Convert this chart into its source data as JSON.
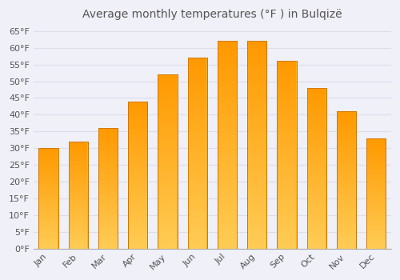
{
  "title": "Average monthly temperatures (°F ) in Bulqizë",
  "months": [
    "Jan",
    "Feb",
    "Mar",
    "Apr",
    "May",
    "Jun",
    "Jul",
    "Aug",
    "Sep",
    "Oct",
    "Nov",
    "Dec"
  ],
  "values": [
    30,
    32,
    36,
    44,
    52,
    57,
    62,
    62,
    56,
    48,
    41,
    33
  ],
  "bar_color_top": "#FFB300",
  "bar_color_bottom": "#FF9900",
  "bar_edge_color": "#CC7700",
  "background_color": "#F0F0F8",
  "plot_bg_color": "#F0F0F8",
  "grid_color": "#DDDDEE",
  "text_color": "#555555",
  "ylim": [
    0,
    67
  ],
  "ytick_step": 5,
  "title_fontsize": 10,
  "tick_fontsize": 8
}
